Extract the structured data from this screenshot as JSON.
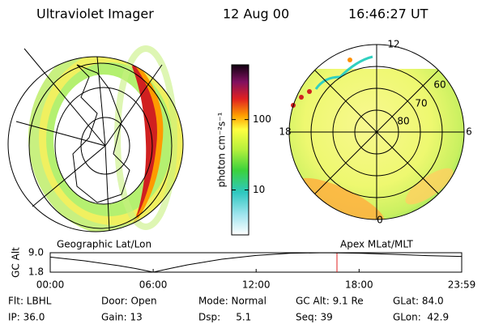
{
  "header": {
    "instrument": "Ultraviolet Imager",
    "date": "12 Aug 00",
    "time": "16:46:27 UT"
  },
  "colorbar": {
    "label": "photon cm⁻²s⁻¹",
    "ylim": [
      2.3,
      600
    ],
    "log": true,
    "yticks": [
      10,
      100
    ]
  },
  "left_panel": {
    "label": "Geographic Lat/Lon"
  },
  "right_panel": {
    "label": "Apex MLat/MLT",
    "mlt_labels": [
      "12",
      "18",
      "6",
      "0"
    ],
    "lat_labels": [
      "60",
      "70",
      "80"
    ]
  },
  "chart_data": {
    "type": "line",
    "ylabel": "GC Alt",
    "x": [
      0,
      2,
      4,
      5,
      6,
      7,
      8,
      10,
      12,
      14,
      16,
      18,
      20,
      22,
      23.98
    ],
    "values": [
      7.4,
      6.0,
      4.2,
      3.1,
      1.8,
      3.2,
      4.5,
      6.6,
      8.0,
      8.8,
      9.0,
      8.8,
      8.4,
      7.9,
      7.6
    ],
    "color": "#000000",
    "xlim": [
      0,
      23.98
    ],
    "xticks": [
      {
        "value": 0,
        "label": "00:00"
      },
      {
        "value": 6,
        "label": "06:00"
      },
      {
        "value": 12,
        "label": "12:00"
      },
      {
        "value": 18,
        "label": "18:00"
      },
      {
        "value": 23.98,
        "label": "23:59"
      }
    ],
    "ylim": [
      1.8,
      9.0
    ],
    "yticks": [
      {
        "value": 9.0,
        "label": "9.0"
      },
      {
        "value": 1.8,
        "label": "1.8"
      }
    ]
  },
  "footer": {
    "rows": [
      [
        "Flt: LBHL",
        "Door: Open",
        "Mode: Normal",
        "GC Alt: 9.1 Re",
        "GLat: 84.0"
      ],
      [
        "IP: 36.0",
        "Gain: 13",
        "Dsp:     5.1",
        "Seq: 39",
        "GLon:  42.9"
      ]
    ]
  }
}
